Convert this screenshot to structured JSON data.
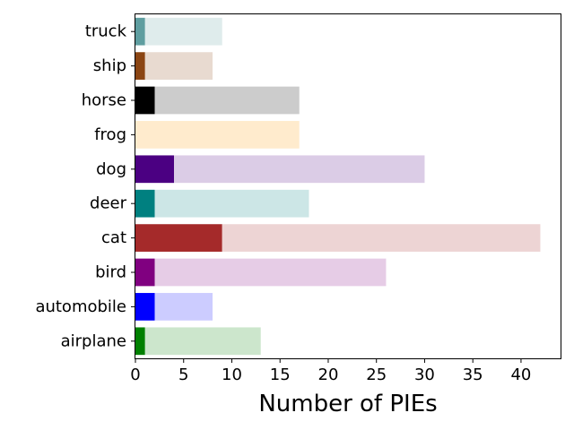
{
  "chart_data": {
    "type": "bar",
    "orientation": "horizontal",
    "stacked": true,
    "categories": [
      "airplane",
      "automobile",
      "bird",
      "cat",
      "deer",
      "dog",
      "frog",
      "horse",
      "ship",
      "truck"
    ],
    "series": [
      {
        "values": [
          1,
          2,
          2,
          9,
          2,
          4,
          0,
          2,
          1,
          1
        ],
        "colors": [
          "#008000",
          "#0000ff",
          "#800080",
          "#a52a2a",
          "#008080",
          "#4b0082",
          "#ffebcd",
          "#000000",
          "#8b4513",
          "#5f9ea0"
        ]
      },
      {
        "values": [
          12,
          6,
          24,
          33,
          16,
          26,
          17,
          15,
          7,
          8
        ],
        "colors": [
          "#cce6cc",
          "#ccccff",
          "#e6cce6",
          "#edd4d4",
          "#cce6e6",
          "#dbcce6",
          "#ffebcd",
          "#cccccc",
          "#e8dad0",
          "#dfecec"
        ]
      }
    ],
    "totals": [
      13,
      8,
      26,
      42,
      18,
      30,
      17,
      17,
      8,
      9
    ],
    "xlabel": "Number of PIEs",
    "ylabel": "",
    "title": "",
    "xlim": [
      0,
      44.1
    ],
    "xticks": [
      "0",
      "5",
      "10",
      "15",
      "20",
      "25",
      "30",
      "35",
      "40"
    ],
    "grid": false,
    "legend": "none"
  }
}
